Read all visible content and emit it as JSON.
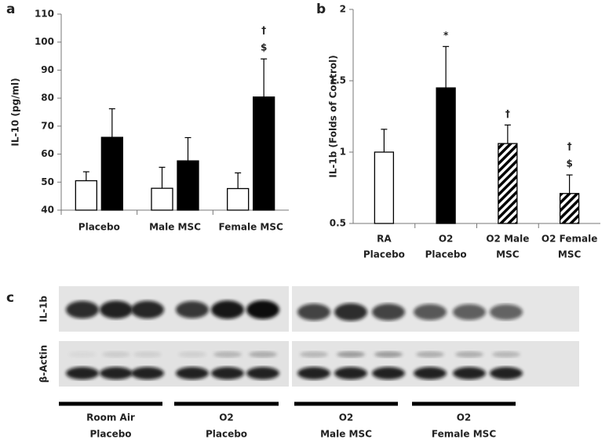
{
  "chart_data": [
    {
      "type": "bar",
      "panel": "a",
      "ylabel": "IL-10 (pg/ml)",
      "categories": [
        "Placebo",
        "Male MSC",
        "Female MSC"
      ],
      "series": [
        {
          "color": "#ffffff",
          "values": [
            50.5,
            47.8,
            47.7
          ],
          "errors": [
            3.2,
            7.5,
            5.6
          ]
        },
        {
          "color": "#000000",
          "values": [
            66,
            57.6,
            80.4
          ],
          "errors": [
            10.2,
            8.3,
            13.6
          ],
          "annotations": [
            [],
            [],
            [
              "†",
              "$"
            ]
          ]
        }
      ],
      "ylim": [
        40,
        110
      ],
      "yticks": [
        40,
        50,
        60,
        70,
        80,
        90,
        100,
        110
      ]
    },
    {
      "type": "bar",
      "panel": "b",
      "ylabel": "IL-1b (Folds of Control)",
      "categories": [
        [
          "RA",
          "Placebo"
        ],
        [
          "O2",
          "Placebo"
        ],
        [
          "O2 Male",
          "MSC"
        ],
        [
          "O2 Female",
          "MSC"
        ]
      ],
      "values": [
        1.0,
        1.45,
        1.06,
        0.71
      ],
      "errors": [
        0.16,
        0.29,
        0.13,
        0.13
      ],
      "fills": [
        "#ffffff",
        "#000000",
        "hatch",
        "hatch"
      ],
      "annotations": [
        [],
        [
          "*"
        ],
        [
          "†"
        ],
        [
          "†",
          "$"
        ]
      ],
      "ylim": [
        0.5,
        2
      ],
      "yticks": [
        0.5,
        1,
        1.5,
        2
      ]
    }
  ],
  "blot": {
    "panel": "c",
    "rows": [
      "IL-1b",
      "β-Actin"
    ],
    "groups": [
      [
        "Room Air",
        "Placebo"
      ],
      [
        "O2",
        "Placebo"
      ],
      [
        "O2",
        "Male MSC"
      ],
      [
        "O2",
        "Female MSC"
      ]
    ]
  }
}
